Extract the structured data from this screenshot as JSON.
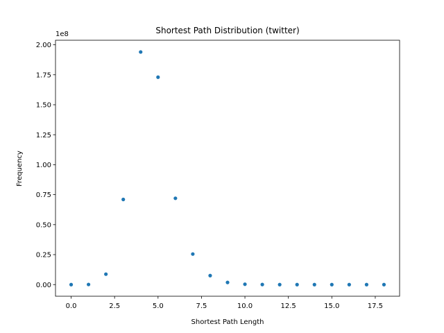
{
  "chart_data": {
    "type": "scatter",
    "title": "Shortest Path Distribution (twitter)",
    "xlabel": "Shortest Path Length",
    "ylabel": "Frequency",
    "y_offset_label": "1e8",
    "xlim": [
      -0.9,
      18.9
    ],
    "ylim": [
      -9700000,
      203800000
    ],
    "x_ticks": [
      0.0,
      2.5,
      5.0,
      7.5,
      10.0,
      12.5,
      15.0,
      17.5
    ],
    "x_tick_labels": [
      "0.0",
      "2.5",
      "5.0",
      "7.5",
      "10.0",
      "12.5",
      "15.0",
      "17.5"
    ],
    "y_ticks": [
      0,
      25000000,
      50000000,
      75000000,
      100000000,
      125000000,
      150000000,
      175000000,
      200000000
    ],
    "y_tick_labels": [
      "0.00",
      "0.25",
      "0.50",
      "0.75",
      "1.00",
      "1.25",
      "1.50",
      "1.75",
      "2.00"
    ],
    "grid": false,
    "color": "#1f77b4",
    "series": [
      {
        "x": [
          0,
          1,
          2,
          3,
          4,
          5,
          6,
          7,
          8,
          9,
          10,
          11,
          12,
          13,
          14,
          15,
          16,
          17,
          18
        ],
        "y": [
          0,
          100000,
          8700000,
          71000000,
          194000000,
          173000000,
          72000000,
          25500000,
          7500000,
          1800000,
          300000,
          50000,
          0,
          0,
          0,
          0,
          0,
          0,
          0
        ]
      }
    ]
  }
}
